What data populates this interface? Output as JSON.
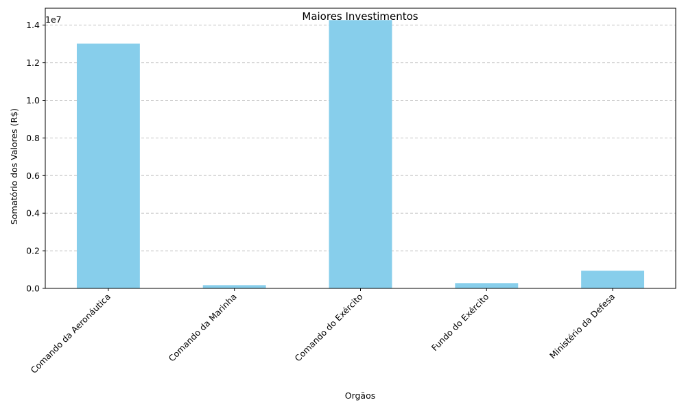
{
  "chart_data": {
    "type": "bar",
    "title": "Maiores Investimentos",
    "xlabel": "Orgãos",
    "ylabel": "Somatório dos Valores (R$)",
    "offset_label": "1e7",
    "categories": [
      "Comando da Aeronáutica",
      "Comando da Marinha",
      "Comando do Exército",
      "Fundo do Exército",
      "Ministério da Defesa"
    ],
    "values": [
      13020000,
      170000,
      14270000,
      280000,
      940000
    ],
    "ylim": [
      0,
      14900000
    ],
    "yticks": [
      0,
      2000000,
      4000000,
      6000000,
      8000000,
      10000000,
      12000000,
      14000000
    ],
    "ytick_labels": [
      "0.0",
      "0.2",
      "0.4",
      "0.6",
      "0.8",
      "1.0",
      "1.2",
      "1.4"
    ],
    "grid": "y-dashed",
    "bar_color": "#87ceeb"
  }
}
